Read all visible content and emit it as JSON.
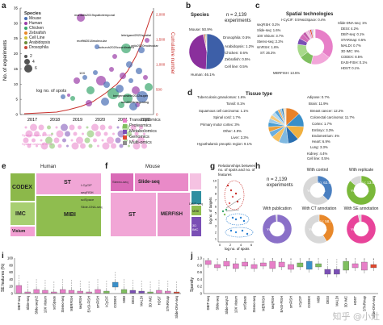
{
  "panels": {
    "a": {
      "label": "a",
      "ylabel_left": "No. of experiments",
      "ylabel_right": "Cumulative number",
      "left_ticks": [
        "0",
        "5",
        "10",
        "15",
        "20",
        "25",
        "30",
        "35"
      ],
      "right_ticks": [
        "0",
        "500",
        "1,000",
        "1,500",
        "2,000"
      ],
      "x_ticks": [
        "2017",
        "2018",
        "2019",
        "2020",
        "2021",
        "2022"
      ],
      "species_title": "Species",
      "species": [
        {
          "name": "Mouse",
          "color": "#4a6fb5"
        },
        {
          "name": "Human",
          "color": "#9b3fa8"
        },
        {
          "name": "Chicken",
          "color": "#3aa66e"
        },
        {
          "name": "Zebrafish",
          "color": "#e88a2a"
        },
        {
          "name": "Cell Line",
          "color": "#d6c43a"
        },
        {
          "name": "Arabidopsis",
          "color": "#6b8e3a"
        },
        {
          "name": "Drosophila",
          "color": "#c94a3a"
        }
      ],
      "size_title": "log no. of spots",
      "size_ticks": [
        "2",
        "4",
        "6"
      ],
      "annotations": [
        "maniatis2019spatiotemporal",
        "moffitt2018molecular",
        "schurch2020coordinated",
        "lebrigand2022spatial",
        "ortiz2020molecular",
        "10X",
        "bergenstrahle2022super",
        "sun2022integrating"
      ],
      "tech_legend": [
        {
          "name": "Transcriptomics",
          "color": "#e77fc8"
        },
        {
          "name": "Proteomics",
          "color": "#7fbf5f"
        },
        {
          "name": "Metabolomics",
          "color": "#7a4fb5"
        },
        {
          "name": "Genomics",
          "color": "#e0472e"
        },
        {
          "name": "Multi-omics",
          "color": "#8c8c8c"
        }
      ],
      "row_labels": [
        "Spatial omics in 2022",
        "Spatial omics in 2021"
      ]
    },
    "b": {
      "label": "b",
      "title": "Species",
      "n_text": "n = 2,139",
      "n_sub": "experiments",
      "chart_data": {
        "type": "pie",
        "categories": [
          "Mouse",
          "Human",
          "Drosophila",
          "Arabidopsis",
          "Chicken",
          "Zebrafish",
          "Cell line"
        ],
        "values": [
          50.9,
          46.1,
          0.5,
          1.2,
          0.6,
          0.5,
          0.5
        ],
        "labels": [
          "Mouse: 50.9%",
          "Human: 46.1%",
          "Drosophila: 0.5%",
          "Arabidopsis: 1.2%",
          "Chicken: 0.6%",
          "Zebrafish: 0.5%",
          "Cell line: 0.5%"
        ],
        "colors": [
          "#3d5fa8",
          "#8a2f9c",
          "#b8b8b8",
          "#c94a3a",
          "#3aa66e",
          "#e88a2a",
          "#6b8e3a"
        ]
      }
    },
    "c": {
      "label": "c",
      "title": "Spatial technologies",
      "labels": [
        "seqFISH: 0.2%",
        "Slide-seq: 1.6%",
        "10X Visium: 3.7%",
        "Stereo-seq: 2.2%",
        "smFISH: 1.6%",
        "ST: 26.3%",
        "MERFISH: 13.5%",
        "Slide-DNA-seq: 1%",
        "DESI: 4.2%",
        "DBiT-seq: 0.1%",
        "STARmap: 0.5%",
        "MALDI: 0.7%",
        "3D IMC: 9%",
        "CODEX: 8.5%",
        "EASI-FISH: 0.1%",
        "HDST: 0.1%",
        "I-CyCIF: 0.5%",
        "sciSpace: 0.4%"
      ],
      "chart_data": {
        "type": "pie",
        "categories": [
          "ST",
          "MERFISH",
          "CODEX",
          "3D IMC",
          "DESI",
          "10X Visium",
          "Stereo-seq",
          "Slide-seq",
          "smFISH",
          "Slide-DNA-seq",
          "MALDI",
          "STARmap",
          "I-CyCIF",
          "sciSpace",
          "seqFISH",
          "DBiT-seq",
          "EASI-FISH",
          "HDST"
        ],
        "values": [
          26.3,
          13.5,
          8.5,
          9,
          4.2,
          3.7,
          2.2,
          1.6,
          1.6,
          1,
          0.7,
          0.5,
          0.5,
          0.4,
          0.2,
          0.1,
          0.1,
          0.1
        ],
        "colors": [
          "#e77fc8",
          "#f2a6d9",
          "#7fbf5f",
          "#a7d98a",
          "#7a4fb5",
          "#d36bb8",
          "#c05aa8",
          "#f0c0e0",
          "#e8a0d0",
          "#e0472e",
          "#9c70c8",
          "#f5b8dc",
          "#b0dc90",
          "#dd88c8",
          "#f7cce6",
          "#e993cf",
          "#f0a8d8",
          "#ee9ed5"
        ]
      }
    },
    "d": {
      "label": "d",
      "title": "Tissue type",
      "labels": [
        "Tuberculosis granulomas: 1.6%",
        "Tonsil: 8.1%",
        "Squamous cell carcinoma: 1.1%",
        "Spinal cord: 1.7%",
        "Primary motor cortex: 3%",
        "Other: 4.9%",
        "Liver: 3.3%",
        "Hypothalamic preoptic region: 9.1%",
        "Adipose: 0.7%",
        "Brain: 11.9%",
        "Breast cancer: 12.2%",
        "Colorectal carcinoma: 11.7%",
        "Cortex: 1.7%",
        "Embryo: 3.3%",
        "Endometrium: 4%",
        "Heart: 6.9%",
        "Lung: 3.3%",
        "Kidney: 4.4%",
        "Cell line: 0.5%"
      ],
      "chart_data": {
        "type": "pie",
        "categories": [
          "Breast cancer",
          "Brain",
          "Colorectal carcinoma",
          "Hypothalamic preoptic region",
          "Tonsil",
          "Heart",
          "Other",
          "Kidney",
          "Endometrium",
          "Liver",
          "Embryo",
          "Lung",
          "Primary motor cortex",
          "Spinal cord",
          "Cortex",
          "Tuberculosis granulomas",
          "Squamous cell carcinoma",
          "Adipose",
          "Cell line"
        ],
        "values": [
          12.2,
          11.9,
          11.7,
          9.1,
          8.1,
          6.9,
          4.9,
          4.4,
          4,
          3.3,
          3.3,
          3.3,
          3,
          1.7,
          1.7,
          1.6,
          1.1,
          0.7,
          0.5
        ],
        "colors": [
          "#e8822a",
          "#3a8fc9",
          "#f0b040",
          "#2a6fb0",
          "#7fb8e0",
          "#f6c060",
          "#6aaee0",
          "#eda03a",
          "#4a9ed4",
          "#9dcbe8",
          "#f7c878",
          "#b4d8ee",
          "#5aa4d8",
          "#f3a850",
          "#88c0e4",
          "#2f7fc0",
          "#f9d28c",
          "#c8e2f2",
          "#ee9840"
        ]
      }
    },
    "e": {
      "label": "e",
      "title": "Human",
      "tiles": [
        "CODEX",
        "ST",
        "IMC",
        "MIBI",
        "Visium",
        "I-CyCIF",
        "seqFISH",
        "sciSpace",
        "Slide-DNA-seq"
      ]
    },
    "f": {
      "label": "f",
      "title": "Mouse",
      "tiles": [
        "Stereo-seq",
        "Slide-seq",
        "ST",
        "MERFISH",
        "DBIT-seq",
        "MIBI",
        "3D IMC"
      ]
    },
    "g": {
      "label": "g",
      "title": "Relationships between no. of spots and no. of features",
      "ylabel": "log no. of targets",
      "xlabel": "log no. of spots",
      "y_ticks": [
        "10",
        "9",
        "8",
        "7",
        "6",
        "5",
        "4",
        "3",
        "2",
        "1"
      ],
      "x_ticks": [
        "0",
        "2",
        "4",
        "6"
      ]
    },
    "h": {
      "label": "h",
      "n_text": "n = 2,139",
      "n_sub": "experiments",
      "donuts": [
        {
          "title": "With control",
          "yes": "Yes: 37.1%",
          "no": "No: 62.9%",
          "value": 37.1,
          "color": "#4a7fc0"
        },
        {
          "title": "With replicate",
          "yes": "Yes: 86.4%",
          "no": "No: 13.6%",
          "value": 86.4,
          "color": "#7ab83a"
        },
        {
          "title": "With publication",
          "yes": "Yes: 98.6%",
          "no": "",
          "value": 98.6,
          "color": "#8a70c8"
        },
        {
          "title": "With CT annotation",
          "yes": "Yes: 41.3%",
          "no": "No: 58.7%",
          "value": 41.3,
          "color": "#e8882a"
        },
        {
          "title": "With SE annotation",
          "yes": "Yes: 96.6%",
          "no": "",
          "value": 96.6,
          "color": "#e8449a"
        }
      ]
    },
    "i": {
      "label": "i",
      "ylabel": "SE features (%)",
      "y_ticks": [
        "100",
        "80",
        "60",
        "40",
        "20",
        "0"
      ],
      "categories": [
        "DBIT-seq",
        "Slide-seq",
        "Slide-seqV2",
        "10X Visium",
        "sciSpace",
        "Stereo-seq",
        "MERFISH",
        "seqFISH",
        "EASI-FISH",
        "smFISH",
        "I-CyCIF",
        "CODEX",
        "MIBI",
        "DESI",
        "MALDI",
        "3D IMC",
        "HDST",
        "STARmap",
        "Slide-DNA-seq"
      ]
    },
    "j": {
      "label": "j",
      "ylabel": "Sparsity",
      "y_ticks": [
        "1.0",
        "0.8",
        "0.6",
        "0.4",
        "0.2",
        "0"
      ],
      "categories": [
        "DBIT-seq",
        "Slide-seq",
        "Slide-seqV2",
        "10X Visium",
        "sciSpace",
        "Stereo-seq",
        "MERFISH",
        "seqFISH",
        "EASI-FISH",
        "smFISH",
        "I-CyCIF",
        "CODEX",
        "MIBI",
        "DESI",
        "MALDI",
        "3D IMC",
        "HDST",
        "STARmap",
        "Slide-DNA-seq"
      ]
    }
  },
  "watermark": "知乎 @小灶"
}
